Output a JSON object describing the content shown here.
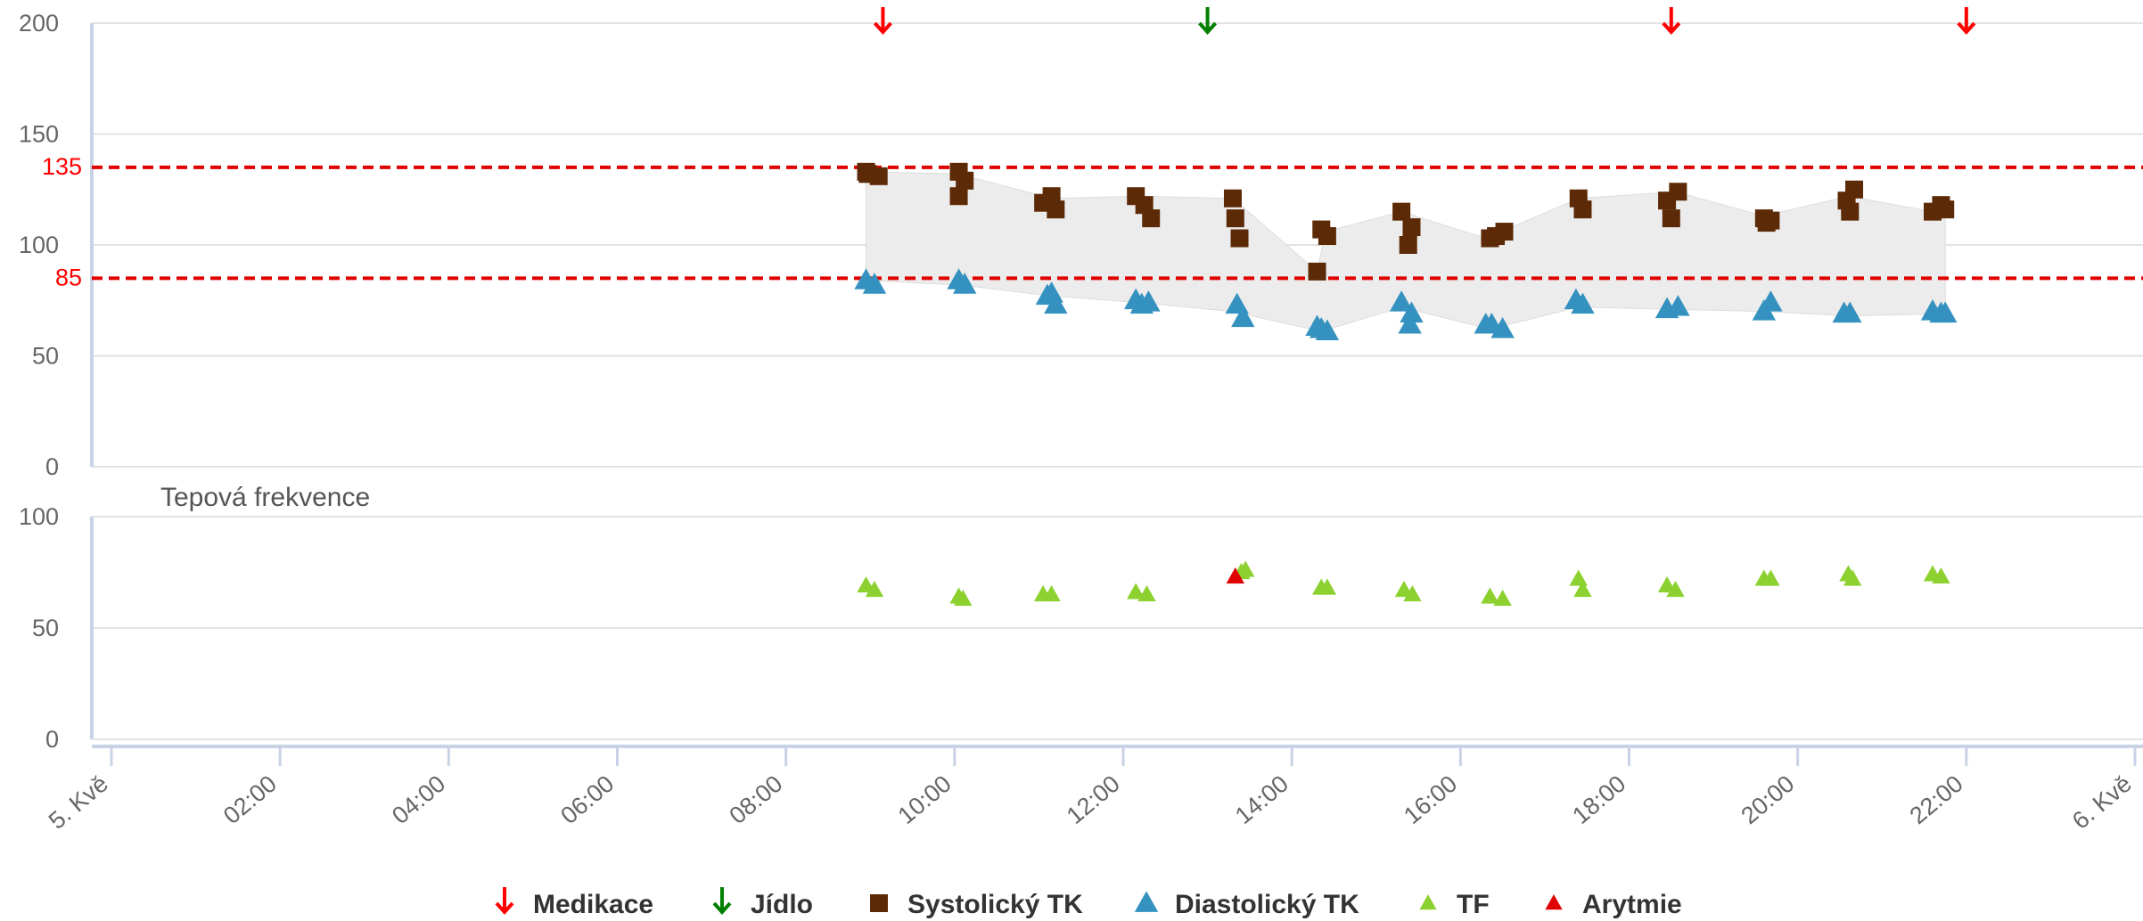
{
  "chart_data": [
    {
      "type": "scatter",
      "title": "",
      "ylim": [
        0,
        200
      ],
      "yticks": [
        "200",
        "150",
        "100",
        "50",
        "0"
      ],
      "grid": true,
      "thresholds": [
        {
          "value": 135,
          "label": "135",
          "color": "#e00000"
        },
        {
          "value": 85,
          "label": "85",
          "color": "#e00000"
        }
      ],
      "range_band": {
        "color": "#ececec",
        "upper": [
          [
            8.95,
            133
          ],
          [
            10.05,
            132
          ],
          [
            11.15,
            121
          ],
          [
            12.2,
            122
          ],
          [
            13.3,
            121
          ],
          [
            14.3,
            88
          ],
          [
            14.4,
            106
          ],
          [
            15.3,
            115
          ],
          [
            16.3,
            103
          ],
          [
            17.4,
            121
          ],
          [
            18.55,
            124
          ],
          [
            19.6,
            113
          ],
          [
            20.6,
            122
          ],
          [
            21.75,
            114
          ]
        ],
        "lower": [
          [
            8.95,
            84
          ],
          [
            10.05,
            82
          ],
          [
            11.15,
            77
          ],
          [
            12.2,
            74
          ],
          [
            13.3,
            70
          ],
          [
            14.35,
            61
          ],
          [
            15.3,
            72
          ],
          [
            16.35,
            62
          ],
          [
            17.4,
            72
          ],
          [
            18.5,
            71
          ],
          [
            19.6,
            70
          ],
          [
            20.6,
            68
          ],
          [
            21.75,
            69
          ]
        ]
      },
      "events": [
        {
          "series": "Medikace",
          "time": "09:10",
          "x": 9.15,
          "color": "#ff0000"
        },
        {
          "series": "Jídlo",
          "time": "13:00",
          "x": 13.0,
          "color": "#008000"
        },
        {
          "series": "Medikace",
          "time": "18:30",
          "x": 18.5,
          "color": "#ff0000"
        },
        {
          "series": "Medikace",
          "time": "22:00",
          "x": 22.0,
          "color": "#ff0000"
        }
      ],
      "series": [
        {
          "name": "Systolický TK",
          "marker": "square",
          "color": "#5c2a06",
          "points": [
            [
              8.95,
              133
            ],
            [
              8.97,
              132
            ],
            [
              9.1,
              131
            ],
            [
              10.05,
              133
            ],
            [
              10.12,
              129
            ],
            [
              10.05,
              122
            ],
            [
              11.05,
              119
            ],
            [
              11.15,
              122
            ],
            [
              11.2,
              116
            ],
            [
              12.15,
              122
            ],
            [
              12.25,
              118
            ],
            [
              12.33,
              112
            ],
            [
              13.3,
              121
            ],
            [
              13.33,
              112
            ],
            [
              13.38,
              103
            ],
            [
              14.3,
              88
            ],
            [
              14.35,
              107
            ],
            [
              14.42,
              104
            ],
            [
              15.3,
              115
            ],
            [
              15.42,
              108
            ],
            [
              15.38,
              100
            ],
            [
              16.35,
              103
            ],
            [
              16.42,
              104
            ],
            [
              16.52,
              106
            ],
            [
              17.4,
              121
            ],
            [
              17.45,
              116
            ],
            [
              18.45,
              120
            ],
            [
              18.5,
              112
            ],
            [
              18.58,
              124
            ],
            [
              19.6,
              112
            ],
            [
              19.63,
              110
            ],
            [
              19.68,
              111
            ],
            [
              20.58,
              120
            ],
            [
              20.62,
              115
            ],
            [
              20.67,
              125
            ],
            [
              21.6,
              115
            ],
            [
              21.7,
              118
            ],
            [
              21.75,
              116
            ]
          ]
        },
        {
          "name": "Diastolický TK",
          "marker": "triangle",
          "color": "#3592c0",
          "points": [
            [
              8.95,
              84
            ],
            [
              9.05,
              82
            ],
            [
              10.05,
              84
            ],
            [
              10.12,
              82
            ],
            [
              11.1,
              77
            ],
            [
              11.15,
              78
            ],
            [
              11.2,
              73
            ],
            [
              12.15,
              75
            ],
            [
              12.22,
              73
            ],
            [
              12.3,
              74
            ],
            [
              13.35,
              73
            ],
            [
              13.42,
              67
            ],
            [
              14.3,
              63
            ],
            [
              14.35,
              62
            ],
            [
              14.42,
              61
            ],
            [
              15.3,
              74
            ],
            [
              15.42,
              69
            ],
            [
              15.4,
              64
            ],
            [
              16.3,
              64
            ],
            [
              16.37,
              64
            ],
            [
              16.5,
              62
            ],
            [
              17.37,
              75
            ],
            [
              17.45,
              73
            ],
            [
              18.45,
              71
            ],
            [
              18.58,
              72
            ],
            [
              19.6,
              70
            ],
            [
              19.68,
              74
            ],
            [
              20.55,
              69
            ],
            [
              20.62,
              69
            ],
            [
              21.6,
              70
            ],
            [
              21.7,
              69
            ],
            [
              21.75,
              69
            ]
          ]
        }
      ]
    },
    {
      "type": "scatter",
      "title": "Tepová frekvence",
      "ylim": [
        0,
        100
      ],
      "yticks": [
        "100",
        "50",
        "0"
      ],
      "grid": true,
      "series": [
        {
          "name": "TF",
          "marker": "triangle",
          "color": "#8dd130",
          "points": [
            [
              8.95,
              69
            ],
            [
              9.05,
              67
            ],
            [
              10.05,
              64
            ],
            [
              10.1,
              63
            ],
            [
              11.05,
              65
            ],
            [
              11.15,
              65
            ],
            [
              12.15,
              66
            ],
            [
              12.28,
              65
            ],
            [
              13.4,
              75
            ],
            [
              13.45,
              76
            ],
            [
              14.35,
              68
            ],
            [
              14.42,
              68
            ],
            [
              15.33,
              67
            ],
            [
              15.43,
              65
            ],
            [
              16.35,
              64
            ],
            [
              16.5,
              63
            ],
            [
              17.4,
              72
            ],
            [
              17.45,
              67
            ],
            [
              18.45,
              69
            ],
            [
              18.55,
              67
            ],
            [
              19.6,
              72
            ],
            [
              19.68,
              72
            ],
            [
              20.6,
              74
            ],
            [
              20.65,
              72
            ],
            [
              21.6,
              74
            ],
            [
              21.7,
              73
            ]
          ]
        },
        {
          "name": "Arytmie",
          "marker": "triangle",
          "color": "#e00000",
          "points": [
            [
              13.33,
              73
            ]
          ]
        }
      ]
    }
  ],
  "x_axis": {
    "min": 0,
    "max": 24,
    "tick_values": [
      0,
      2,
      4,
      6,
      8,
      10,
      12,
      14,
      16,
      18,
      20,
      22,
      24
    ],
    "tick_labels": [
      "5. Kvě",
      "02:00",
      "04:00",
      "06:00",
      "08:00",
      "10:00",
      "12:00",
      "14:00",
      "16:00",
      "18:00",
      "20:00",
      "22:00",
      "6. Kvě"
    ]
  },
  "legend": {
    "placement": "bottom-center",
    "items": [
      {
        "label": "Medikace",
        "icon": "arrow-down-icon",
        "color": "#ff0000"
      },
      {
        "label": "Jídlo",
        "icon": "arrow-down-icon",
        "color": "#008000"
      },
      {
        "label": "Systolický TK",
        "icon": "square-icon",
        "color": "#5c2a06"
      },
      {
        "label": "Diastolický TK",
        "icon": "triangle-icon",
        "color": "#3592c0"
      },
      {
        "label": "TF",
        "icon": "triangle-icon",
        "color": "#8dd130"
      },
      {
        "label": "Arytmie",
        "icon": "triangle-icon",
        "color": "#e00000"
      }
    ]
  }
}
